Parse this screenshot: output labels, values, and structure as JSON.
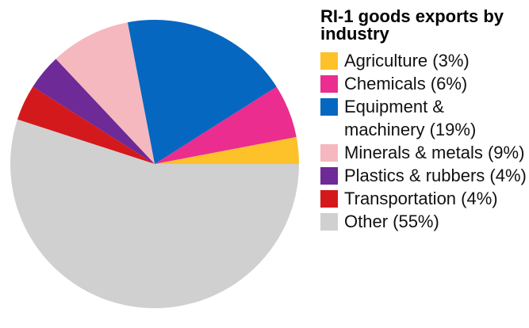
{
  "chart_data": {
    "type": "pie",
    "title": "RI-1 goods exports by industry",
    "slices": [
      {
        "label": "Agriculture (3%)",
        "value": 3,
        "color": "#fdc12a"
      },
      {
        "label": "Chemicals (6%)",
        "value": 6,
        "color": "#ea2d8f"
      },
      {
        "label": "Equipment & machinery (19%)",
        "value": 19,
        "color": "#0567c0"
      },
      {
        "label": "Minerals & metals (9%)",
        "value": 9,
        "color": "#f5b8bf"
      },
      {
        "label": "Plastics & rubbers (4%)",
        "value": 4,
        "color": "#6e2a96"
      },
      {
        "label": "Transportation (4%)",
        "value": 4,
        "color": "#d4191d"
      },
      {
        "label": "Other (55%)",
        "value": 55,
        "color": "#d0d0d0"
      }
    ],
    "legend_position": "right"
  }
}
